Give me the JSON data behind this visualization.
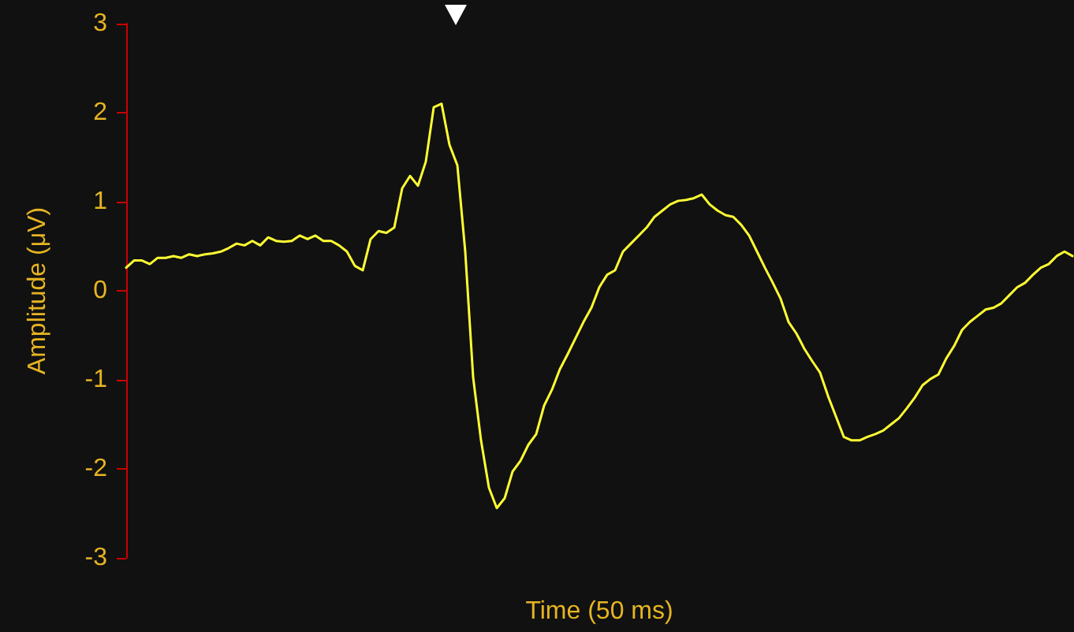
{
  "chart_data": {
    "type": "line",
    "xlabel": "Time (50 ms)",
    "ylabel": "Amplitude (μV)",
    "categories": [
      null,
      null,
      null,
      null,
      null,
      null,
      null,
      null,
      null,
      null,
      null,
      null,
      null,
      null,
      null,
      null,
      null,
      null,
      null,
      null,
      null,
      null,
      null,
      null,
      null,
      null,
      null,
      null,
      null,
      null,
      null,
      null,
      null,
      null,
      null,
      null,
      null,
      null,
      null,
      null,
      null,
      null,
      null,
      null,
      null,
      null,
      null,
      null,
      null,
      null,
      null,
      null,
      null,
      null,
      null,
      null,
      null,
      null,
      null,
      null,
      null,
      null,
      null,
      null,
      null,
      null,
      null,
      null,
      null,
      null,
      null,
      null,
      null,
      null,
      null,
      null,
      null,
      null,
      null,
      null,
      null,
      null,
      null,
      null,
      null,
      null,
      null,
      null,
      null,
      null,
      null,
      null,
      null,
      null,
      null,
      null,
      null,
      null,
      null,
      null,
      null,
      null,
      null,
      null,
      null,
      null,
      null,
      null,
      null,
      null,
      null,
      null,
      null,
      null,
      null,
      null,
      null,
      null,
      null,
      null,
      null
    ],
    "values": [
      0.26,
      0.34,
      0.34,
      0.3,
      0.37,
      0.37,
      0.39,
      0.37,
      0.41,
      0.39,
      0.41,
      0.42,
      0.44,
      0.48,
      0.53,
      0.51,
      0.56,
      0.51,
      0.6,
      0.56,
      0.55,
      0.56,
      0.62,
      0.58,
      0.62,
      0.56,
      0.56,
      0.51,
      0.44,
      0.28,
      0.23,
      0.58,
      0.67,
      0.65,
      0.71,
      1.15,
      1.29,
      1.18,
      1.45,
      2.06,
      2.1,
      1.64,
      1.41,
      0.44,
      -0.97,
      -1.68,
      -2.21,
      -2.44,
      -2.33,
      -2.03,
      -1.91,
      -1.73,
      -1.61,
      -1.29,
      -1.11,
      -0.88,
      -0.71,
      -0.53,
      -0.35,
      -0.19,
      0.04,
      0.18,
      0.23,
      0.44,
      0.53,
      0.62,
      0.71,
      0.83,
      0.9,
      0.97,
      1.01,
      1.02,
      1.04,
      1.08,
      0.97,
      0.9,
      0.85,
      0.83,
      0.74,
      0.62,
      0.44,
      0.26,
      0.09,
      -0.09,
      -0.35,
      -0.48,
      -0.65,
      -0.79,
      -0.92,
      -1.18,
      -1.41,
      -1.64,
      -1.68,
      -1.68,
      -1.64,
      -1.61,
      -1.57,
      -1.5,
      -1.43,
      -1.32,
      -1.2,
      -1.06,
      -0.99,
      -0.94,
      -0.76,
      -0.62,
      -0.44,
      -0.35,
      -0.28,
      -0.21,
      -0.19,
      -0.14,
      -0.05,
      0.04,
      0.09,
      0.18,
      0.26,
      0.3,
      0.39,
      0.44,
      0.39
    ],
    "color": "#ffff33",
    "ylim": [
      -3,
      3
    ],
    "yticks": [
      -3,
      -2,
      -1,
      0,
      1,
      2,
      3
    ],
    "tick_labels": "y",
    "line_style": "solid"
  }
}
